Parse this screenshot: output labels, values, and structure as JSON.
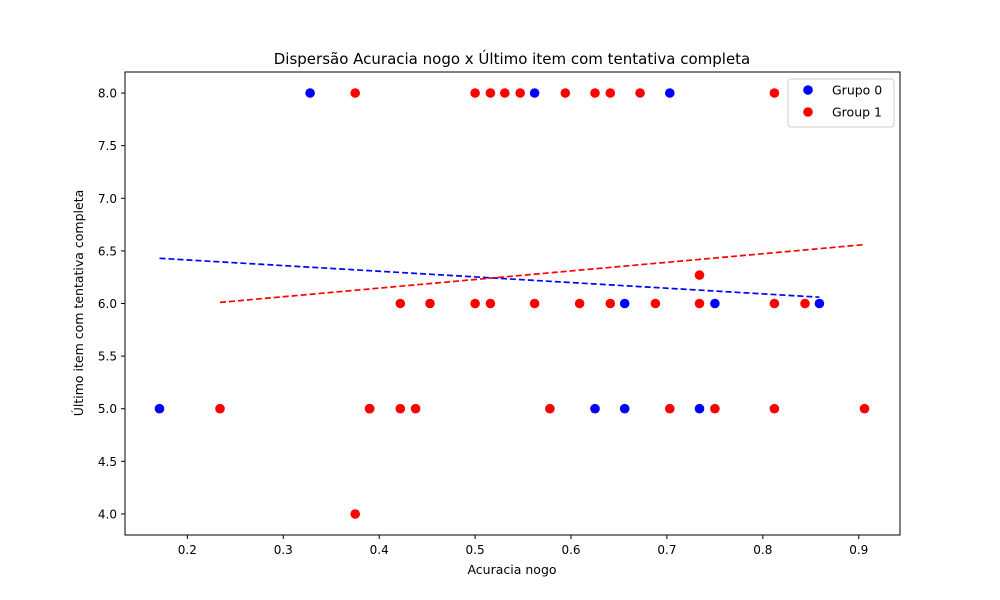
{
  "chart_data": {
    "type": "scatter",
    "title": "Dispersão Acuracia nogo x Último item com tentativa completa",
    "xlabel": "Acuracia nogo",
    "ylabel": "Último item com tentativa completa",
    "xlim": [
      0.135,
      0.943
    ],
    "ylim": [
      3.8,
      8.2
    ],
    "xticks": [
      0.2,
      0.3,
      0.4,
      0.5,
      0.6,
      0.7,
      0.8,
      0.9
    ],
    "xtick_labels": [
      "0.2",
      "0.3",
      "0.4",
      "0.5",
      "0.6",
      "0.7",
      "0.8",
      "0.9"
    ],
    "yticks": [
      4.0,
      4.5,
      5.0,
      5.5,
      6.0,
      6.5,
      7.0,
      7.5,
      8.0
    ],
    "ytick_labels": [
      "4.0",
      "4.5",
      "5.0",
      "5.5",
      "6.0",
      "6.5",
      "7.0",
      "7.5",
      "8.0"
    ],
    "grid": false,
    "legend_position": "top-right",
    "series": [
      {
        "name": "Grupo 0",
        "color": "#0000ff",
        "points": [
          [
            0.171,
            5.0
          ],
          [
            0.328,
            8.0
          ],
          [
            0.562,
            8.0
          ],
          [
            0.625,
            5.0
          ],
          [
            0.656,
            6.0
          ],
          [
            0.656,
            5.0
          ],
          [
            0.703,
            8.0
          ],
          [
            0.734,
            5.0
          ],
          [
            0.75,
            6.0
          ],
          [
            0.859,
            6.0
          ]
        ],
        "trendline": {
          "x": [
            0.171,
            0.859
          ],
          "y": [
            6.43,
            6.06
          ],
          "style": "dashed"
        }
      },
      {
        "name": "Group 1",
        "color": "#ff0000",
        "points": [
          [
            0.234,
            5.0
          ],
          [
            0.375,
            8.0
          ],
          [
            0.375,
            4.0
          ],
          [
            0.39,
            5.0
          ],
          [
            0.39,
            5.0
          ],
          [
            0.422,
            6.0
          ],
          [
            0.422,
            5.0
          ],
          [
            0.438,
            5.0
          ],
          [
            0.453,
            6.0
          ],
          [
            0.5,
            8.0
          ],
          [
            0.5,
            6.0
          ],
          [
            0.516,
            8.0
          ],
          [
            0.516,
            6.0
          ],
          [
            0.531,
            8.0
          ],
          [
            0.547,
            8.0
          ],
          [
            0.562,
            6.0
          ],
          [
            0.578,
            5.0
          ],
          [
            0.594,
            8.0
          ],
          [
            0.609,
            6.0
          ],
          [
            0.625,
            8.0
          ],
          [
            0.641,
            8.0
          ],
          [
            0.641,
            6.0
          ],
          [
            0.672,
            8.0
          ],
          [
            0.688,
            6.0
          ],
          [
            0.703,
            5.0
          ],
          [
            0.734,
            6.27
          ],
          [
            0.734,
            6.0
          ],
          [
            0.75,
            5.0
          ],
          [
            0.812,
            8.0
          ],
          [
            0.812,
            6.0
          ],
          [
            0.812,
            5.0
          ],
          [
            0.844,
            6.0
          ],
          [
            0.906,
            5.0
          ]
        ],
        "trendline": {
          "x": [
            0.234,
            0.906
          ],
          "y": [
            6.01,
            6.56
          ],
          "style": "dashed"
        }
      }
    ]
  }
}
